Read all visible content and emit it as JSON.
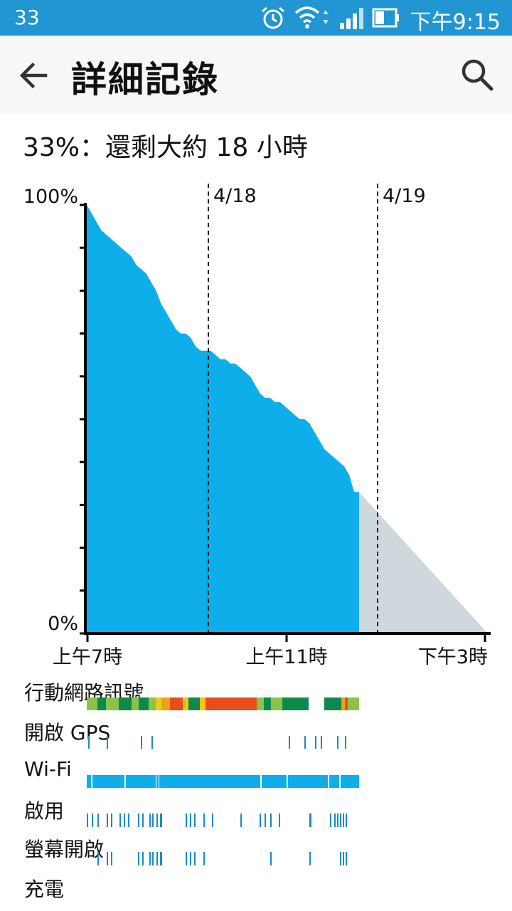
{
  "status_bar": {
    "battery_number": "33",
    "time": "下午9:15",
    "icons": [
      "alarm-icon",
      "wifi-icon",
      "cell-signal-icon",
      "battery-icon"
    ]
  },
  "app_bar": {
    "title": "詳細記錄",
    "back_icon": "back-arrow-icon",
    "search_icon": "search-icon"
  },
  "summary": "33%：還剩大約 18 小時",
  "chart_data": {
    "type": "area",
    "ylabel_top": "100%",
    "ylabel_bottom": "0%",
    "x_tick_labels": [
      "上午7時",
      "上午11時",
      "下午3時"
    ],
    "date_markers": [
      "4/18",
      "4/19"
    ],
    "colors": {
      "history": "#0eaeea",
      "prediction": "#cfd8dc"
    },
    "battery_history_percent": [
      100,
      98,
      96,
      94,
      93,
      92,
      91,
      90,
      89,
      88,
      86,
      85,
      84,
      82,
      80,
      77,
      75,
      73,
      71,
      70,
      70,
      69,
      67,
      66,
      66,
      66,
      65,
      64,
      64,
      63,
      63,
      62,
      61,
      60,
      58,
      56,
      55,
      55,
      54,
      54,
      53,
      52,
      51,
      50,
      50,
      49,
      47,
      45,
      43,
      42,
      41,
      40,
      39,
      37,
      33,
      33
    ],
    "predicted_percent": [
      33,
      0
    ]
  },
  "activity_rows": [
    {
      "label": "行動網路訊號"
    },
    {
      "label": "開啟 GPS"
    },
    {
      "label": "Wi-Fi"
    },
    {
      "label": "啟用"
    },
    {
      "label": "螢幕開啟"
    },
    {
      "label": "充電"
    }
  ]
}
